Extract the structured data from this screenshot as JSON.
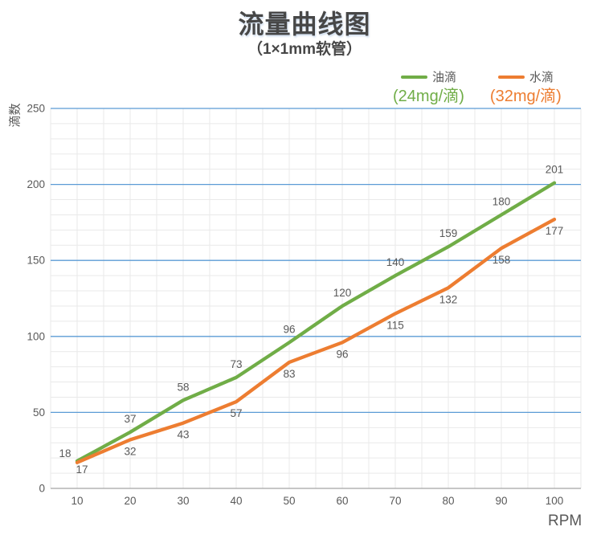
{
  "chart_data": {
    "type": "line",
    "title": "流量曲线图",
    "subtitle": "（1×1mm软管）",
    "x": [
      10,
      20,
      30,
      40,
      50,
      60,
      70,
      80,
      90,
      100
    ],
    "series": [
      {
        "name": "油滴",
        "sublabel": "(24mg/滴)",
        "color": "#70ad47",
        "values": [
          18,
          37,
          58,
          73,
          96,
          120,
          140,
          159,
          180,
          201
        ]
      },
      {
        "name": "水滴",
        "sublabel": "(32mg/滴)",
        "color": "#ed7d31",
        "values": [
          17,
          32,
          43,
          57,
          83,
          96,
          115,
          132,
          158,
          177
        ]
      }
    ],
    "xlabel": "RPM",
    "ylabel": "滴数",
    "ylim": [
      0,
      250
    ],
    "y_ticks": [
      0,
      50,
      100,
      150,
      200,
      250
    ],
    "x_plot_range": [
      5,
      105
    ],
    "grid": {
      "major_color": "#5b9bd5",
      "minor_color": "#e9e9e9",
      "axis_color": "#b3b3b3",
      "minor_y_step": 10,
      "minor_x_step": 5
    },
    "label_color": "#595959",
    "legend_position": "top-right",
    "data_labels": true
  }
}
